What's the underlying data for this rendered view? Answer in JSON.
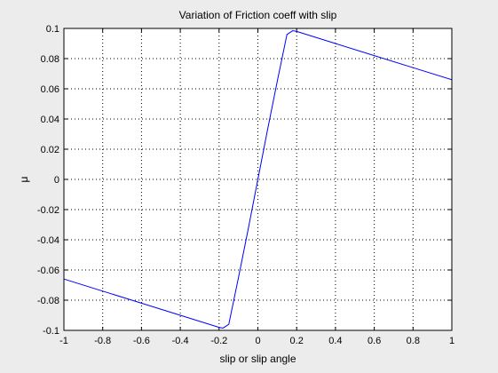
{
  "chart_data": {
    "type": "line",
    "title": "Variation of Friction coeff with slip",
    "xlabel": "slip or slip angle",
    "ylabel": "μ",
    "xlim": [
      -1,
      1
    ],
    "ylim": [
      -0.1,
      0.1
    ],
    "xticks": [
      -1,
      -0.8,
      -0.6,
      -0.4,
      -0.2,
      0,
      0.2,
      0.4,
      0.6,
      0.8,
      1
    ],
    "xtick_labels": [
      "-1",
      "-0.8",
      "-0.6",
      "-0.4",
      "-0.2",
      "0",
      "0.2",
      "0.4",
      "0.6",
      "0.8",
      "1"
    ],
    "yticks": [
      -0.1,
      -0.08,
      -0.06,
      -0.04,
      -0.02,
      0,
      0.02,
      0.04,
      0.06,
      0.08,
      0.1
    ],
    "ytick_labels": [
      "-0.1",
      "-0.08",
      "-0.06",
      "-0.04",
      "-0.02",
      "0",
      "0.02",
      "0.04",
      "0.06",
      "0.08",
      "0.1"
    ],
    "grid": true,
    "line_color": "#0000ff",
    "series": [
      {
        "x": [
          -1,
          -0.8,
          -0.6,
          -0.4,
          -0.2,
          -0.18,
          -0.15,
          -0.1,
          -0.05,
          0,
          0.05,
          0.1,
          0.15,
          0.18,
          0.2,
          0.4,
          0.6,
          0.8,
          1
        ],
        "y": [
          -0.066,
          -0.074,
          -0.082,
          -0.09,
          -0.098,
          -0.0985,
          -0.096,
          -0.065,
          -0.033,
          0,
          0.033,
          0.065,
          0.096,
          0.0985,
          0.098,
          0.09,
          0.082,
          0.074,
          0.066
        ]
      }
    ]
  }
}
